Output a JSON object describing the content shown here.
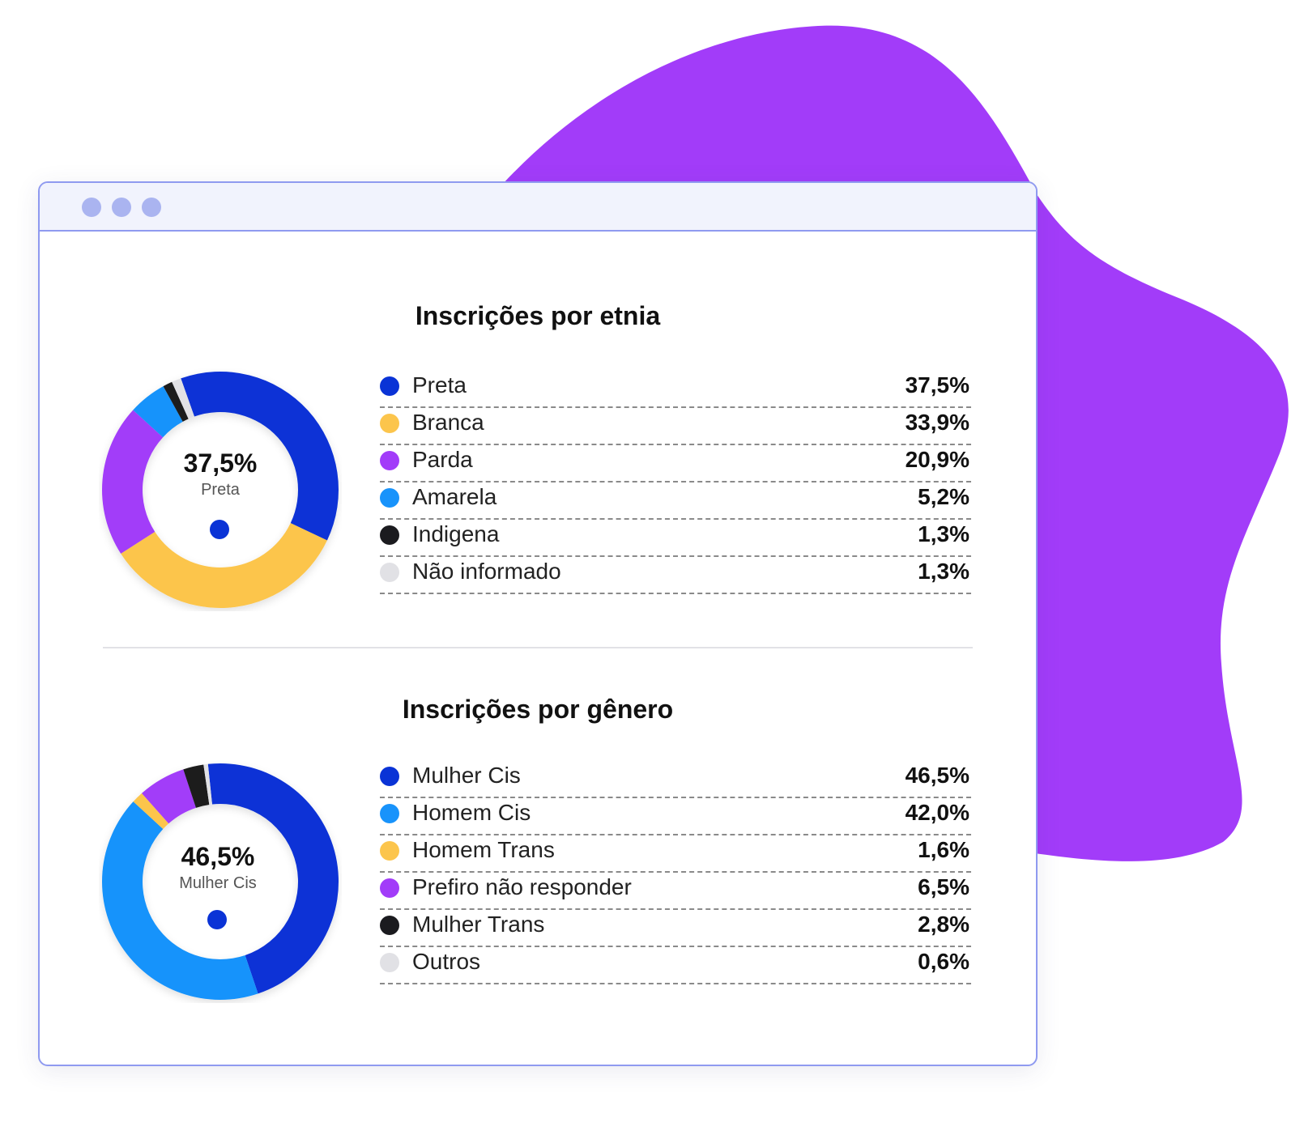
{
  "colors": {
    "blob": "#a23cf9",
    "window_border": "#8f9af0",
    "titlebar_bg": "#f1f3fd",
    "window_dot": "#aab4f0"
  },
  "chart_data": [
    {
      "type": "pie",
      "title": "Inscrições por etnia",
      "center_value": "37,5%",
      "center_label": "Preta",
      "center_dot_color": "#0a33d6",
      "slices": [
        {
          "label": "Preta",
          "value": 37.5,
          "display": "37,5%",
          "color": "#0a33d6"
        },
        {
          "label": "Branca",
          "value": 33.9,
          "display": "33,9%",
          "color": "#fcc54c"
        },
        {
          "label": "Parda",
          "value": 20.9,
          "display": "20,9%",
          "color": "#a23cf9"
        },
        {
          "label": "Amarela",
          "value": 5.2,
          "display": "5,2%",
          "color": "#1893fb"
        },
        {
          "label": "Indigena",
          "value": 1.3,
          "display": "1,3%",
          "color": "#1b1b1f"
        },
        {
          "label": "Não informado",
          "value": 1.3,
          "display": "1,3%",
          "color": "#e1e1e5"
        }
      ]
    },
    {
      "type": "pie",
      "title": "Inscrições por gênero",
      "center_value": "46,5%",
      "center_label": "Mulher Cis",
      "center_dot_color": "#0a33d6",
      "slices": [
        {
          "label": "Mulher Cis",
          "value": 46.5,
          "display": "46,5%",
          "color": "#0a33d6"
        },
        {
          "label": "Homem Cis",
          "value": 42.0,
          "display": "42,0%",
          "color": "#1893fb"
        },
        {
          "label": "Homem Trans",
          "value": 1.6,
          "display": "1,6%",
          "color": "#fcc54c"
        },
        {
          "label": "Prefiro não responder",
          "value": 6.5,
          "display": "6,5%",
          "color": "#a23cf9"
        },
        {
          "label": "Mulher Trans",
          "value": 2.8,
          "display": "2,8%",
          "color": "#1b1b1f"
        },
        {
          "label": "Outros",
          "value": 0.6,
          "display": "0,6%",
          "color": "#e1e1e5"
        }
      ]
    }
  ]
}
